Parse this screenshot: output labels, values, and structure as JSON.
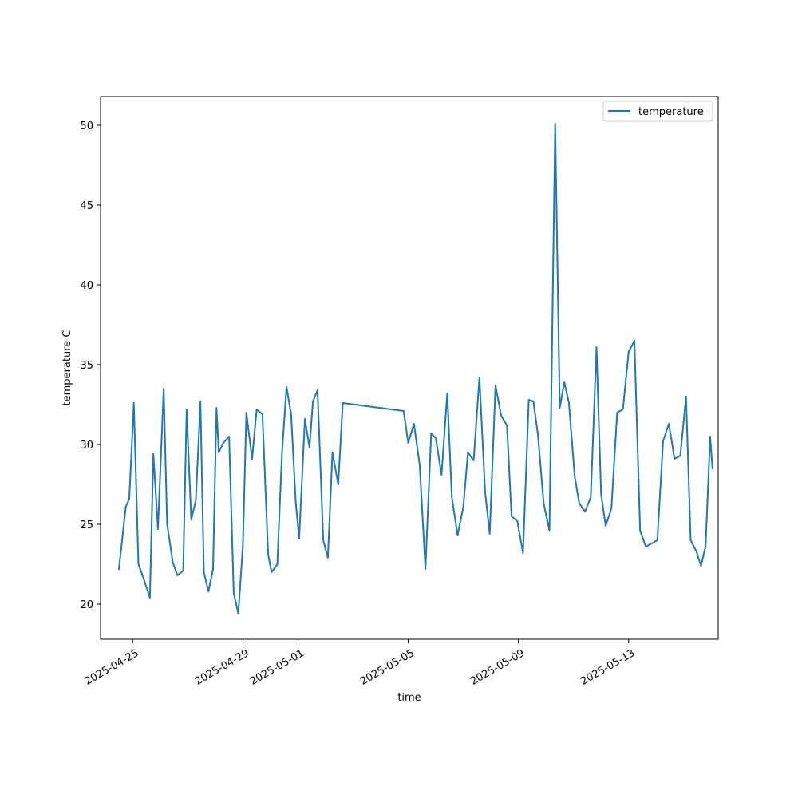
{
  "chart_data": {
    "type": "line",
    "xlabel": "time",
    "ylabel": "temperature C",
    "xlim": [
      "2025-04-23T20:00",
      "2025-05-16T06:00"
    ],
    "ylim": [
      17.8,
      51.8
    ],
    "x_ticks": [
      "2025-04-25",
      "2025-04-29",
      "2025-05-01",
      "2025-05-05",
      "2025-05-09",
      "2025-05-13"
    ],
    "y_ticks": [
      20,
      25,
      30,
      35,
      40,
      45,
      50
    ],
    "grid": false,
    "legend_position": "top-right",
    "series": [
      {
        "name": "temperature",
        "color": "#1f77b4",
        "x": [
          "2025-04-24T12:00",
          "2025-04-24T18:00",
          "2025-04-24T21:00",
          "2025-04-25T01:00",
          "2025-04-25T05:00",
          "2025-04-25T10:00",
          "2025-04-25T15:00",
          "2025-04-25T18:00",
          "2025-04-25T22:00",
          "2025-04-26T03:00",
          "2025-04-26T06:00",
          "2025-04-26T11:00",
          "2025-04-26T15:00",
          "2025-04-26T20:00",
          "2025-04-26T23:00",
          "2025-04-27T03:00",
          "2025-04-27T07:00",
          "2025-04-27T11:00",
          "2025-04-27T14:00",
          "2025-04-27T18:00",
          "2025-04-27T22:00",
          "2025-04-28T01:00",
          "2025-04-28T03:00",
          "2025-04-28T07:00",
          "2025-04-28T12:00",
          "2025-04-28T16:00",
          "2025-04-28T20:00",
          "2025-04-29T00:00",
          "2025-04-29T03:00",
          "2025-04-29T08:00",
          "2025-04-29T12:00",
          "2025-04-29T17:00",
          "2025-04-29T22:00",
          "2025-04-30T01:00",
          "2025-04-30T06:00",
          "2025-04-30T10:00",
          "2025-04-30T14:00",
          "2025-04-30T18:00",
          "2025-04-30T22:00",
          "2025-05-01T01:00",
          "2025-05-01T06:00",
          "2025-05-01T10:00",
          "2025-05-01T13:00",
          "2025-05-01T17:00",
          "2025-05-01T22:00",
          "2025-05-02T02:00",
          "2025-05-02T06:00",
          "2025-05-02T11:00",
          "2025-05-02T15:00",
          "2025-05-04T20:00",
          "2025-05-05T00:00",
          "2025-05-05T05:00",
          "2025-05-05T10:00",
          "2025-05-05T15:00",
          "2025-05-05T20:00",
          "2025-05-06T00:00",
          "2025-05-06T05:00",
          "2025-05-06T10:00",
          "2025-05-06T14:00",
          "2025-05-06T19:00",
          "2025-05-07T00:00",
          "2025-05-07T04:00",
          "2025-05-07T09:00",
          "2025-05-07T14:00",
          "2025-05-07T19:00",
          "2025-05-07T23:00",
          "2025-05-08T04:00",
          "2025-05-08T09:00",
          "2025-05-08T14:00",
          "2025-05-08T18:00",
          "2025-05-08T23:00",
          "2025-05-09T04:00",
          "2025-05-09T09:00",
          "2025-05-09T13:00",
          "2025-05-09T17:00",
          "2025-05-09T22:00",
          "2025-05-10T03:00",
          "2025-05-10T08:00",
          "2025-05-10T12:00",
          "2025-05-10T16:00",
          "2025-05-10T20:00",
          "2025-05-11T01:00",
          "2025-05-11T05:00",
          "2025-05-11T10:00",
          "2025-05-11T15:00",
          "2025-05-11T20:00",
          "2025-05-12T00:00",
          "2025-05-12T04:00",
          "2025-05-12T09:00",
          "2025-05-12T14:00",
          "2025-05-12T19:00",
          "2025-05-13T00:00",
          "2025-05-13T05:00",
          "2025-05-13T10:00",
          "2025-05-13T15:00",
          "2025-05-14T01:00",
          "2025-05-14T06:00",
          "2025-05-14T11:00",
          "2025-05-14T16:00",
          "2025-05-14T21:00",
          "2025-05-15T02:00",
          "2025-05-15T06:00",
          "2025-05-15T11:00",
          "2025-05-15T15:00",
          "2025-05-15T19:00",
          "2025-05-15T23:00",
          "2025-05-16T01:00"
        ],
        "y": [
          22.2,
          26.1,
          26.6,
          32.6,
          22.5,
          21.5,
          20.4,
          29.4,
          24.7,
          33.5,
          25.0,
          22.6,
          21.8,
          22.1,
          32.2,
          25.3,
          26.5,
          32.7,
          22.0,
          20.8,
          22.2,
          32.3,
          29.5,
          30.1,
          30.5,
          20.7,
          19.4,
          23.7,
          32.0,
          29.1,
          32.2,
          31.9,
          23.1,
          22.0,
          22.5,
          29.4,
          33.6,
          31.9,
          26.4,
          24.1,
          31.6,
          29.8,
          32.7,
          33.4,
          24.0,
          22.9,
          29.5,
          27.5,
          32.6,
          32.1,
          30.1,
          31.3,
          28.7,
          22.2,
          30.7,
          30.4,
          28.1,
          33.2,
          26.7,
          24.3,
          26.1,
          29.5,
          29.0,
          34.2,
          27.0,
          24.4,
          33.7,
          31.8,
          31.2,
          25.5,
          25.2,
          23.2,
          32.8,
          32.7,
          30.6,
          26.3,
          24.6,
          50.1,
          32.3,
          33.9,
          32.6,
          28.0,
          26.3,
          25.8,
          26.7,
          36.1,
          26.9,
          24.9,
          26.0,
          32.0,
          32.2,
          35.8,
          36.5,
          24.6,
          23.6,
          24.0,
          30.2,
          31.3,
          29.1,
          29.3,
          33.0,
          24.0,
          23.3,
          22.4,
          23.6,
          30.5,
          28.5
        ]
      }
    ]
  }
}
